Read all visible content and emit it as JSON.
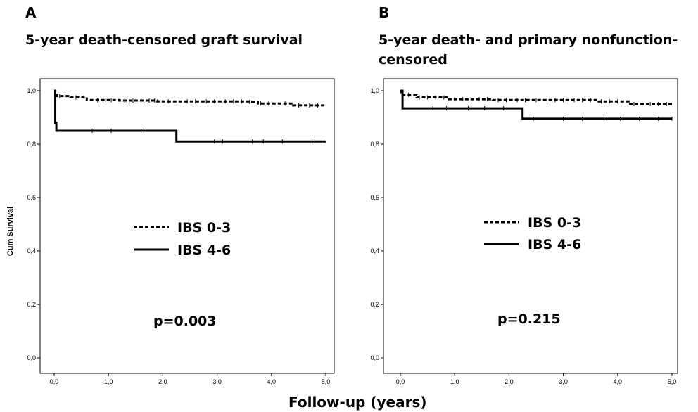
{
  "figure": {
    "panel_a": {
      "letter": "A",
      "title": "5-year death-censored graft survival"
    },
    "panel_b": {
      "letter": "B",
      "title_line1": "5-year death- and primary nonfunction-",
      "title_line2": "censored"
    },
    "shared_xlabel": "Follow-up (years)"
  },
  "chart_data": [
    {
      "type": "line",
      "panel": "A",
      "title": "5-year death-censored graft survival",
      "xlabel": "Follow-up (years)",
      "ylabel": "Cum Survival",
      "xlim": [
        0,
        5
      ],
      "ylim": [
        0,
        1
      ],
      "xticks": [
        0,
        1,
        2,
        3,
        4,
        5
      ],
      "xtick_labels": [
        "0,0",
        "1,0",
        "2,0",
        "3,0",
        "4,0",
        "5,0"
      ],
      "yticks": [
        0,
        0.2,
        0.4,
        0.6,
        0.8,
        1.0
      ],
      "ytick_labels": [
        "0,0",
        "0,2",
        "0,4",
        "0,6",
        "0,8",
        "1,0"
      ],
      "annotation": "p=0.003",
      "legend_placement": "center",
      "series": [
        {
          "name": "IBS 0-3",
          "style": "dashed",
          "color": "#000000",
          "x": [
            0,
            0.02,
            0.05,
            0.3,
            0.6,
            1.2,
            1.9,
            3.6,
            3.75,
            4.4,
            5.0
          ],
          "y": [
            1.0,
            0.985,
            0.98,
            0.975,
            0.965,
            0.963,
            0.96,
            0.958,
            0.952,
            0.945,
            0.945
          ],
          "censor_x": [
            0.1,
            0.2,
            0.4,
            0.55,
            0.8,
            0.95,
            1.05,
            1.3,
            1.45,
            1.6,
            1.75,
            1.85,
            2.1,
            2.3,
            2.45,
            2.6,
            2.8,
            2.95,
            3.15,
            3.3,
            3.45,
            3.6,
            3.8,
            3.95,
            4.1,
            4.25,
            4.5,
            4.7,
            4.85
          ]
        },
        {
          "name": "IBS 4-6",
          "style": "solid",
          "color": "#000000",
          "x": [
            0,
            0.02,
            0.04,
            2.25,
            5.0
          ],
          "y": [
            1.0,
            0.88,
            0.85,
            0.81,
            0.81
          ],
          "censor_x": [
            0.7,
            1.05,
            1.6,
            2.95,
            3.1,
            3.65,
            3.85,
            4.2,
            4.8
          ]
        }
      ]
    },
    {
      "type": "line",
      "panel": "B",
      "title": "5-year death- and primary nonfunction-censored",
      "xlabel": "Follow-up (years)",
      "ylabel": "",
      "xlim": [
        0,
        5
      ],
      "ylim": [
        0,
        1
      ],
      "xticks": [
        0,
        1,
        2,
        3,
        4,
        5
      ],
      "xtick_labels": [
        "0,0",
        "1,0",
        "2,0",
        "3,0",
        "4,0",
        "5,0"
      ],
      "yticks": [
        0,
        0.2,
        0.4,
        0.6,
        0.8,
        1.0
      ],
      "ytick_labels": [
        "0,0",
        "0,2",
        "0,4",
        "0,6",
        "0,8",
        "1,0"
      ],
      "annotation": "p=0.215",
      "legend_placement": "center",
      "series": [
        {
          "name": "IBS 0-3",
          "style": "dashed",
          "color": "#000000",
          "x": [
            0,
            0.02,
            0.3,
            0.9,
            1.7,
            3.65,
            4.2,
            5.0
          ],
          "y": [
            1.0,
            0.985,
            0.975,
            0.968,
            0.965,
            0.96,
            0.95,
            0.95
          ],
          "censor_x": [
            0.15,
            0.35,
            0.5,
            0.65,
            0.8,
            1.0,
            1.15,
            1.3,
            1.45,
            1.6,
            1.8,
            1.95,
            2.15,
            2.3,
            2.5,
            2.7,
            2.85,
            3.0,
            3.2,
            3.35,
            3.5,
            3.7,
            3.85,
            4.0,
            4.3,
            4.45,
            4.6,
            4.75,
            4.9
          ]
        },
        {
          "name": "IBS 4-6",
          "style": "solid",
          "color": "#000000",
          "x": [
            0,
            0.04,
            2.25,
            5.0
          ],
          "y": [
            1.0,
            0.934,
            0.895,
            0.895
          ],
          "censor_x": [
            0.6,
            0.85,
            1.25,
            1.55,
            1.9,
            2.45,
            3.0,
            3.35,
            3.8,
            4.05,
            4.4,
            4.75,
            5.0
          ]
        }
      ]
    }
  ]
}
